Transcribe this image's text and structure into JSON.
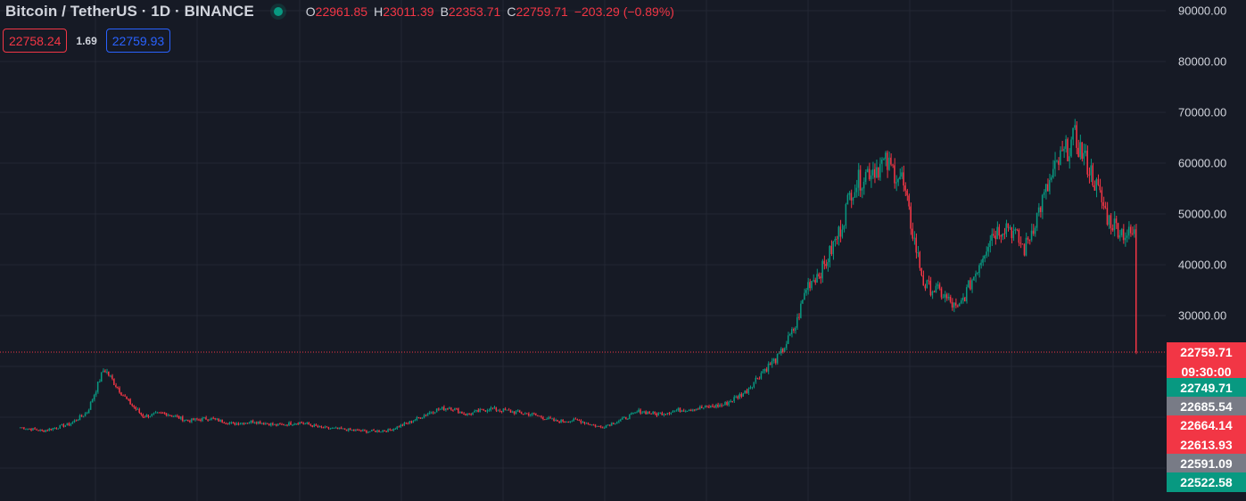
{
  "header": {
    "symbol_title": "Bitcoin / TetherUS · 1D · BINANCE",
    "ohlc": {
      "open_label": "O",
      "open": "22961.85",
      "high_label": "H",
      "high": "23011.39",
      "low_label": "B",
      "low": "22353.71",
      "close_label": "C",
      "close": "22759.71",
      "change": "−203.29 (−0.89%)"
    },
    "bid": "22758.24",
    "spread": "1.69",
    "ask": "22759.93"
  },
  "price_axis": {
    "ticks": [
      "90000.00",
      "80000.00",
      "70000.00",
      "60000.00",
      "50000.00",
      "40000.00",
      "30000.00"
    ],
    "last_price": "22759.71",
    "countdown": "09:30:00",
    "labels": [
      {
        "value": "22749.71",
        "color": "#089981"
      },
      {
        "value": "22685.54",
        "color": "#787b86"
      },
      {
        "value": "22664.14",
        "color": "#f23645"
      },
      {
        "value": "22613.93",
        "color": "#f23645"
      },
      {
        "value": "22591.09",
        "color": "#787b86"
      },
      {
        "value": "22522.58",
        "color": "#089981"
      }
    ]
  },
  "chart_data": {
    "type": "candlestick",
    "y_ticks": [
      30000,
      40000,
      50000,
      60000,
      70000,
      80000,
      90000
    ],
    "last_price": 22759.71,
    "up_color": "#089981",
    "down_color": "#f23645",
    "grid": true,
    "close_path": [
      [
        0,
        8000
      ],
      [
        0.02,
        7300
      ],
      [
        0.045,
        8700
      ],
      [
        0.06,
        11000
      ],
      [
        0.075,
        19600
      ],
      [
        0.085,
        16500
      ],
      [
        0.095,
        13500
      ],
      [
        0.11,
        10200
      ],
      [
        0.13,
        10800
      ],
      [
        0.15,
        9300
      ],
      [
        0.17,
        9800
      ],
      [
        0.19,
        8700
      ],
      [
        0.21,
        9200
      ],
      [
        0.23,
        8400
      ],
      [
        0.25,
        9000
      ],
      [
        0.27,
        7900
      ],
      [
        0.29,
        7600
      ],
      [
        0.31,
        7200
      ],
      [
        0.33,
        7400
      ],
      [
        0.35,
        9100
      ],
      [
        0.37,
        11300
      ],
      [
        0.385,
        12000
      ],
      [
        0.4,
        10500
      ],
      [
        0.42,
        11700
      ],
      [
        0.44,
        11100
      ],
      [
        0.46,
        10500
      ],
      [
        0.48,
        9200
      ],
      [
        0.5,
        9400
      ],
      [
        0.52,
        8000
      ],
      [
        0.54,
        9600
      ],
      [
        0.555,
        11200
      ],
      [
        0.57,
        10600
      ],
      [
        0.59,
        11400
      ],
      [
        0.61,
        11800
      ],
      [
        0.63,
        12400
      ],
      [
        0.65,
        15000
      ],
      [
        0.665,
        19000
      ],
      [
        0.68,
        22000
      ],
      [
        0.695,
        28000
      ],
      [
        0.705,
        36000
      ],
      [
        0.72,
        39500
      ],
      [
        0.735,
        47000
      ],
      [
        0.745,
        55000
      ],
      [
        0.76,
        58500
      ],
      [
        0.775,
        60000
      ],
      [
        0.79,
        57000
      ],
      [
        0.8,
        46000
      ],
      [
        0.81,
        36000
      ],
      [
        0.825,
        34500
      ],
      [
        0.84,
        31000
      ],
      [
        0.855,
        38000
      ],
      [
        0.87,
        46000
      ],
      [
        0.885,
        48000
      ],
      [
        0.9,
        43000
      ],
      [
        0.915,
        52000
      ],
      [
        0.93,
        60000
      ],
      [
        0.945,
        65000
      ],
      [
        0.96,
        58000
      ],
      [
        0.975,
        49000
      ],
      [
        0.99,
        46000
      ]
    ]
  }
}
